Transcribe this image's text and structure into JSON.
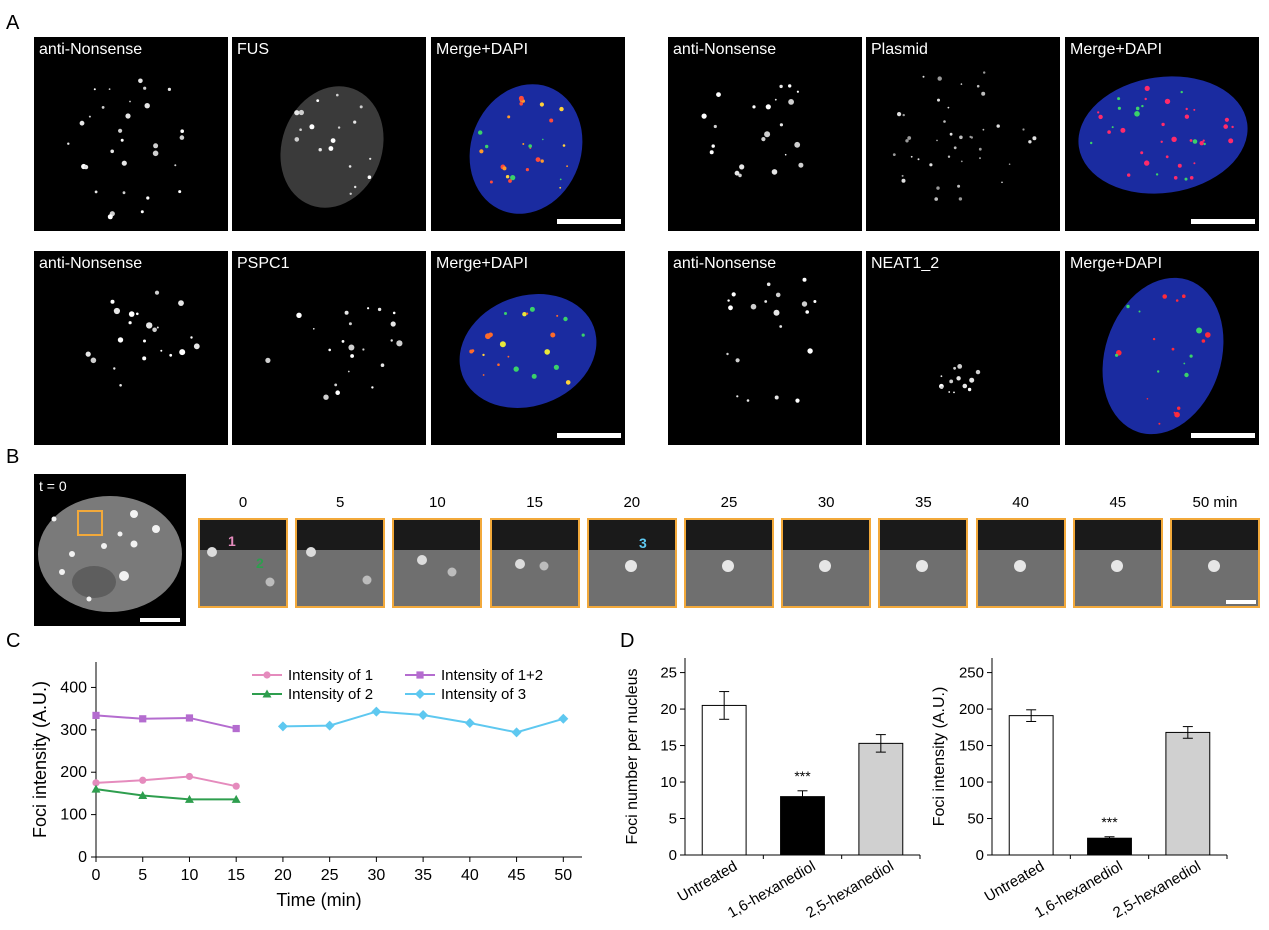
{
  "panel_labels": {
    "a": "A",
    "b": "B",
    "c": "C",
    "d": "D"
  },
  "panelA": {
    "rows": [
      [
        "anti-Nonsense",
        "FUS",
        "Merge+DAPI"
      ],
      [
        "anti-Nonsense",
        "PSPC1",
        "Merge+DAPI"
      ],
      [
        "anti-Nonsense",
        "Plasmid",
        "Merge+DAPI"
      ],
      [
        "anti-Nonsense",
        "NEAT1_2",
        "Merge+DAPI"
      ]
    ]
  },
  "panelB": {
    "t0_label": "t = 0",
    "times": [
      "0",
      "5",
      "10",
      "15",
      "20",
      "25",
      "30",
      "35",
      "40",
      "45",
      "50 min"
    ],
    "focus_labels": {
      "one": "1",
      "two": "2",
      "three": "3"
    },
    "colors": {
      "frame": "#f2a93b",
      "one": "#e58bbd",
      "two": "#2e9e4e",
      "three": "#5ec8f0"
    }
  },
  "chart_data": [
    {
      "type": "line",
      "panel": "C",
      "xlabel": "Time (min)",
      "ylabel": "Foci intensity (A.U.)",
      "xticks": [
        0,
        5,
        10,
        15,
        20,
        25,
        30,
        35,
        40,
        45,
        50
      ],
      "yticks": [
        0,
        100,
        200,
        300,
        400
      ],
      "xlim": [
        0,
        52
      ],
      "ylim": [
        0,
        460
      ],
      "legend_position": "top-right",
      "series": [
        {
          "name": "Intensity of 1",
          "color": "#e58bbd",
          "marker": "circle",
          "x": [
            0,
            5,
            10,
            15
          ],
          "y": [
            175,
            181,
            190,
            167
          ]
        },
        {
          "name": "Intensity of 2",
          "color": "#2e9e4e",
          "marker": "triangle",
          "x": [
            0,
            5,
            10,
            15
          ],
          "y": [
            160,
            145,
            136,
            136
          ]
        },
        {
          "name": "Intensity of 1+2",
          "color": "#b46ccf",
          "marker": "square",
          "x": [
            0,
            5,
            10,
            15
          ],
          "y": [
            334,
            326,
            328,
            303
          ]
        },
        {
          "name": "Intensity of 3",
          "color": "#5ec8f0",
          "marker": "diamond",
          "x": [
            20,
            25,
            30,
            35,
            40,
            45,
            50
          ],
          "y": [
            308,
            310,
            343,
            335,
            316,
            294,
            326
          ]
        }
      ]
    },
    {
      "type": "bar",
      "panel": "D-left",
      "ylabel": "Foci number per nucleus",
      "categories": [
        "Untreated",
        "1,6-hexanediol",
        "2,5-hexanediol"
      ],
      "values": [
        20.5,
        8.0,
        15.3
      ],
      "errors": [
        1.9,
        0.8,
        1.2
      ],
      "fills": [
        "#ffffff",
        "#000000",
        "#d0d0d0"
      ],
      "annotations": [
        "",
        "***",
        ""
      ],
      "yticks": [
        0,
        5,
        10,
        15,
        20,
        25
      ],
      "ylim": [
        0,
        27
      ]
    },
    {
      "type": "bar",
      "panel": "D-right",
      "ylabel": "Foci intensity (A.U.)",
      "categories": [
        "Untreated",
        "1,6-hexanediol",
        "2,5-hexanediol"
      ],
      "values": [
        191,
        23,
        168
      ],
      "errors": [
        8,
        2,
        8
      ],
      "fills": [
        "#ffffff",
        "#000000",
        "#d0d0d0"
      ],
      "annotations": [
        "",
        "***",
        ""
      ],
      "yticks": [
        0,
        50,
        100,
        150,
        200,
        250
      ],
      "ylim": [
        0,
        270
      ]
    }
  ]
}
